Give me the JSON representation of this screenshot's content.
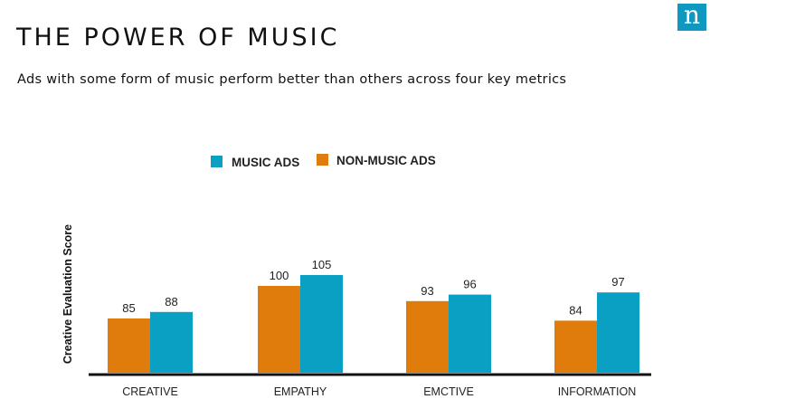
{
  "header": {
    "title": "THE POWER OF MUSIC",
    "subtitle": "Ads with some form of music perform better than others across four key metrics",
    "logo_letter": "n"
  },
  "colors": {
    "music": "#0aa0c4",
    "non_music": "#e07c0c",
    "logo": "#0f98c0",
    "axis": "#111111"
  },
  "chart_data": {
    "type": "bar",
    "categories": [
      "CREATIVE",
      "EMPATHY",
      "EMCTIVE",
      "INFORMATION"
    ],
    "series": [
      {
        "name": "NON-MUSIC ADS",
        "values": [
          85,
          100,
          93,
          84
        ]
      },
      {
        "name": "MUSIC ADS",
        "values": [
          88,
          105,
          96,
          97
        ]
      }
    ],
    "title": "",
    "xlabel": "",
    "ylabel": "Creative Evaluation Score",
    "ylim": [
      60,
      110
    ],
    "grid": false,
    "legend_position": "top",
    "legend_order": [
      "MUSIC ADS",
      "NON-MUSIC ADS"
    ]
  }
}
